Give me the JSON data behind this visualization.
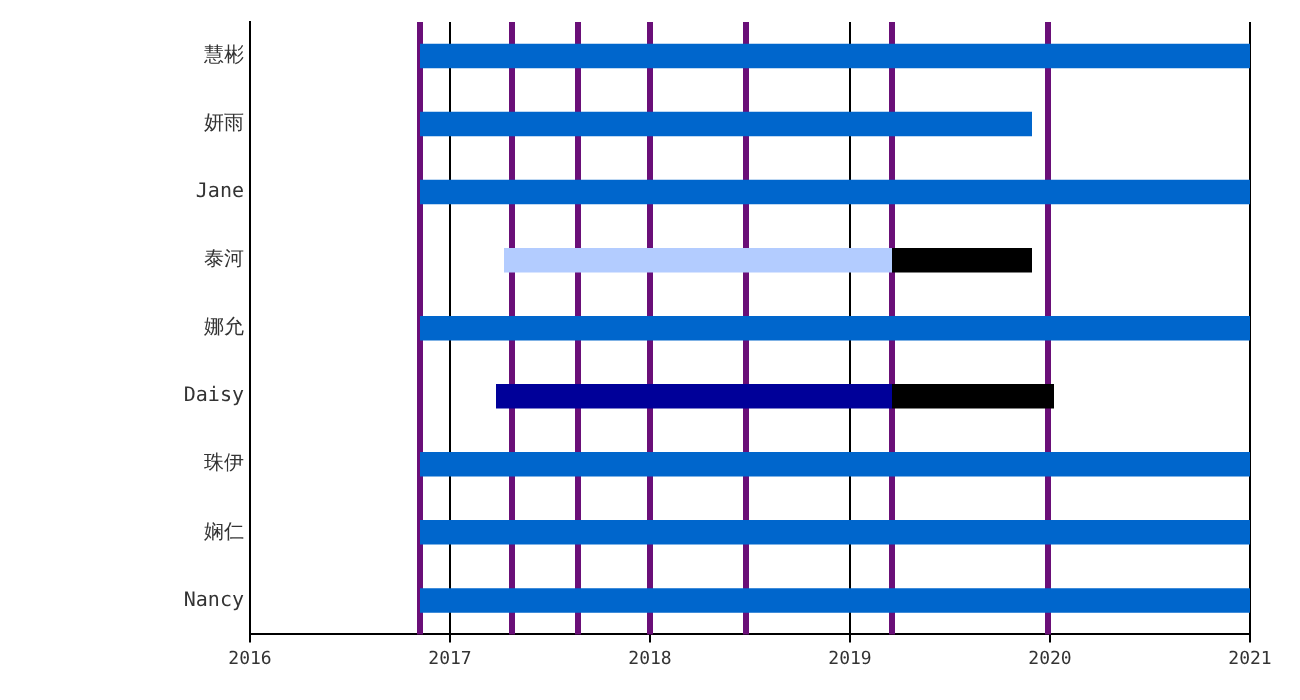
{
  "chart_data": {
    "type": "bar",
    "orientation": "horizontal",
    "categories": [
      "慧彬",
      "妍雨",
      "Jane",
      "泰河",
      "娜允",
      "Daisy",
      "珠伊",
      "娴仁",
      "Nancy"
    ],
    "series": [
      {
        "color": "#0066cc",
        "base": [
          2016.85,
          2016.85,
          2016.85,
          null,
          2016.85,
          null,
          2016.85,
          2016.85,
          2016.85
        ],
        "values": [
          4.15,
          3.06,
          4.15,
          null,
          4.15,
          null,
          4.15,
          4.15,
          4.15
        ]
      },
      {
        "color": "#b3ccff",
        "base": [
          null,
          null,
          null,
          2017.27,
          null,
          null,
          null,
          null,
          null
        ],
        "values": [
          null,
          null,
          null,
          1.94,
          null,
          null,
          null,
          null,
          null
        ]
      },
      {
        "color": "#000099",
        "base": [
          null,
          null,
          null,
          null,
          null,
          2017.23,
          null,
          null,
          null
        ],
        "values": [
          null,
          null,
          null,
          null,
          null,
          1.98,
          null,
          null,
          null
        ]
      },
      {
        "color": "#000000",
        "base": [
          null,
          null,
          null,
          2019.21,
          null,
          2019.21,
          null,
          null,
          null
        ],
        "values": [
          null,
          null,
          null,
          0.7,
          null,
          0.81,
          null,
          null,
          null
        ]
      }
    ],
    "xlim": [
      2016,
      2021
    ],
    "xticks": [
      2016,
      2017,
      2018,
      2019,
      2020,
      2021
    ],
    "grid": "x",
    "legend": false,
    "ref_lines": [
      {
        "axis": "x",
        "value": 2016.85,
        "color": "#6a0f78"
      },
      {
        "axis": "x",
        "value": 2017.31,
        "color": "#6a0f78"
      },
      {
        "axis": "x",
        "value": 2017.64,
        "color": "#6a0f78"
      },
      {
        "axis": "x",
        "value": 2018.0,
        "color": "#6a0f78"
      },
      {
        "axis": "x",
        "value": 2018.48,
        "color": "#6a0f78"
      },
      {
        "axis": "x",
        "value": 2019.21,
        "color": "#6a0f78"
      },
      {
        "axis": "x",
        "value": 2019.99,
        "color": "#6a0f78"
      }
    ]
  }
}
